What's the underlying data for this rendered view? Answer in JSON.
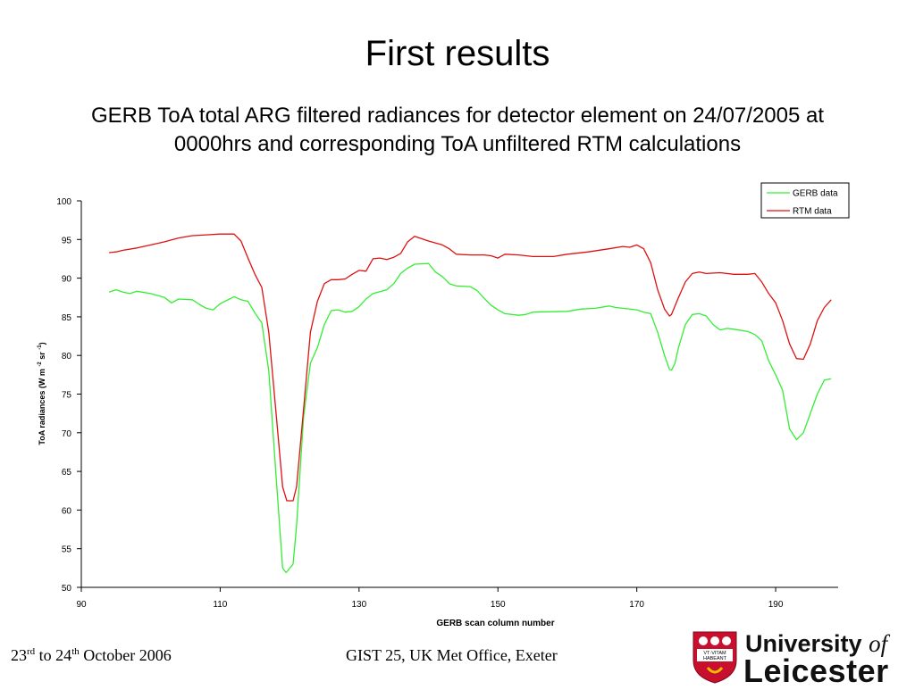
{
  "slide": {
    "title": "First results",
    "subtitle_line1": "GERB ToA total ARG filtered radiances for detector element on 24/07/2005 at",
    "subtitle_line2": "0000hrs and corresponding ToA unfiltered RTM calculations",
    "footer_date_parts": {
      "d1": "23",
      "s1": "rd",
      "mid": " to 24",
      "s2": "th",
      "end": " October 2006"
    },
    "footer_center": "GIST 25, UK Met Office, Exeter",
    "logo_line1": "University",
    "logo_of": "of",
    "logo_line2": "Leicester",
    "logo_shield_motto_1": "VT·VITAM",
    "logo_shield_motto_2": "HABEANT"
  },
  "chart_data": {
    "type": "line",
    "xlabel": "GERB scan column number",
    "ylabel": "ToA radiances (W m-2 sr-1)",
    "xlim": [
      90,
      199
    ],
    "ylim": [
      50,
      100
    ],
    "xticks": [
      90,
      110,
      130,
      150,
      170,
      190
    ],
    "yticks": [
      50,
      55,
      60,
      65,
      70,
      75,
      80,
      85,
      90,
      95,
      100
    ],
    "legend_position": "top-right",
    "series": [
      {
        "name": "GERB data",
        "color": "#33ee33",
        "points": [
          [
            94,
            88.2
          ],
          [
            95,
            88.5
          ],
          [
            96,
            88.2
          ],
          [
            97,
            88.0
          ],
          [
            98,
            88.3
          ],
          [
            100,
            88.0
          ],
          [
            102,
            87.5
          ],
          [
            103,
            86.8
          ],
          [
            104,
            87.3
          ],
          [
            106,
            87.2
          ],
          [
            107,
            86.6
          ],
          [
            108,
            86.1
          ],
          [
            109,
            85.9
          ],
          [
            110,
            86.7
          ],
          [
            112,
            87.6
          ],
          [
            113,
            87.2
          ],
          [
            114,
            87.0
          ],
          [
            115,
            85.5
          ],
          [
            116,
            84.2
          ],
          [
            117,
            78.0
          ],
          [
            118,
            65.0
          ],
          [
            119,
            52.5
          ],
          [
            119.5,
            51.9
          ],
          [
            120.5,
            53.0
          ],
          [
            121,
            58.0
          ],
          [
            122,
            72.0
          ],
          [
            123,
            79.0
          ],
          [
            124,
            81.0
          ],
          [
            125,
            84.0
          ],
          [
            126,
            85.8
          ],
          [
            127,
            85.9
          ],
          [
            128,
            85.6
          ],
          [
            129,
            85.7
          ],
          [
            130,
            86.3
          ],
          [
            131,
            87.3
          ],
          [
            132,
            88.0
          ],
          [
            134,
            88.5
          ],
          [
            135,
            89.3
          ],
          [
            136,
            90.6
          ],
          [
            137,
            91.3
          ],
          [
            138,
            91.8
          ],
          [
            140,
            91.9
          ],
          [
            141,
            90.8
          ],
          [
            142,
            90.2
          ],
          [
            143,
            89.3
          ],
          [
            144,
            89.0
          ],
          [
            146,
            88.9
          ],
          [
            147,
            88.4
          ],
          [
            148,
            87.4
          ],
          [
            149,
            86.5
          ],
          [
            150,
            85.9
          ],
          [
            151,
            85.4
          ],
          [
            153,
            85.2
          ],
          [
            154,
            85.3
          ],
          [
            155,
            85.6
          ],
          [
            160,
            85.7
          ],
          [
            162,
            86.0
          ],
          [
            164,
            86.1
          ],
          [
            166,
            86.4
          ],
          [
            167,
            86.2
          ],
          [
            170,
            85.9
          ],
          [
            171,
            85.6
          ],
          [
            172,
            85.4
          ],
          [
            173,
            83.0
          ],
          [
            174,
            80.0
          ],
          [
            174.7,
            78.2
          ],
          [
            175,
            78.1
          ],
          [
            175.5,
            79.0
          ],
          [
            176,
            81.0
          ],
          [
            177,
            84.0
          ],
          [
            178,
            85.3
          ],
          [
            179,
            85.4
          ],
          [
            180,
            85.1
          ],
          [
            181,
            84.0
          ],
          [
            182,
            83.3
          ],
          [
            183,
            83.5
          ],
          [
            184,
            83.4
          ],
          [
            186,
            83.1
          ],
          [
            187,
            82.7
          ],
          [
            188,
            81.9
          ],
          [
            189,
            79.3
          ],
          [
            190,
            77.5
          ],
          [
            191,
            75.5
          ],
          [
            191.7,
            72.0
          ],
          [
            192,
            70.5
          ],
          [
            193,
            69.1
          ],
          [
            194,
            70.0
          ],
          [
            195,
            72.5
          ],
          [
            196,
            75.0
          ],
          [
            197,
            76.8
          ],
          [
            198,
            77.0
          ]
        ]
      },
      {
        "name": "RTM data",
        "color": "#dd1111",
        "points": [
          [
            94,
            93.3
          ],
          [
            95,
            93.4
          ],
          [
            96,
            93.6
          ],
          [
            98,
            93.9
          ],
          [
            100,
            94.3
          ],
          [
            102,
            94.7
          ],
          [
            104,
            95.2
          ],
          [
            106,
            95.5
          ],
          [
            108,
            95.6
          ],
          [
            110,
            95.7
          ],
          [
            112,
            95.7
          ],
          [
            113,
            94.8
          ],
          [
            114,
            92.6
          ],
          [
            115,
            90.5
          ],
          [
            116,
            88.8
          ],
          [
            117,
            83.0
          ],
          [
            118,
            73.0
          ],
          [
            119,
            63.0
          ],
          [
            119.6,
            61.2
          ],
          [
            120.5,
            61.2
          ],
          [
            121,
            63.0
          ],
          [
            122,
            73.0
          ],
          [
            123,
            83.0
          ],
          [
            124,
            87.0
          ],
          [
            125,
            89.3
          ],
          [
            126,
            89.8
          ],
          [
            127,
            89.8
          ],
          [
            128,
            89.9
          ],
          [
            129,
            90.5
          ],
          [
            130,
            91.0
          ],
          [
            131,
            90.9
          ],
          [
            132,
            92.5
          ],
          [
            133,
            92.6
          ],
          [
            134,
            92.4
          ],
          [
            135,
            92.7
          ],
          [
            136,
            93.2
          ],
          [
            137,
            94.7
          ],
          [
            138,
            95.4
          ],
          [
            139,
            95.1
          ],
          [
            140,
            94.8
          ],
          [
            142,
            94.3
          ],
          [
            143,
            93.8
          ],
          [
            144,
            93.1
          ],
          [
            146,
            93.0
          ],
          [
            148,
            93.0
          ],
          [
            149,
            92.9
          ],
          [
            150,
            92.6
          ],
          [
            151,
            93.1
          ],
          [
            153,
            93.0
          ],
          [
            155,
            92.8
          ],
          [
            158,
            92.8
          ],
          [
            160,
            93.1
          ],
          [
            163,
            93.4
          ],
          [
            166,
            93.8
          ],
          [
            168,
            94.1
          ],
          [
            169,
            94.0
          ],
          [
            170,
            94.3
          ],
          [
            171,
            93.8
          ],
          [
            172,
            92.0
          ],
          [
            173,
            88.5
          ],
          [
            174,
            86.0
          ],
          [
            174.7,
            85.1
          ],
          [
            175,
            85.3
          ],
          [
            176,
            87.5
          ],
          [
            177,
            89.5
          ],
          [
            178,
            90.6
          ],
          [
            179,
            90.8
          ],
          [
            180,
            90.6
          ],
          [
            182,
            90.7
          ],
          [
            184,
            90.5
          ],
          [
            186,
            90.5
          ],
          [
            187,
            90.6
          ],
          [
            188,
            89.5
          ],
          [
            189,
            88.0
          ],
          [
            190,
            86.8
          ],
          [
            191,
            84.5
          ],
          [
            192,
            81.5
          ],
          [
            193,
            79.6
          ],
          [
            194,
            79.5
          ],
          [
            195,
            81.5
          ],
          [
            196,
            84.5
          ],
          [
            197,
            86.2
          ],
          [
            198,
            87.2
          ]
        ]
      }
    ]
  }
}
